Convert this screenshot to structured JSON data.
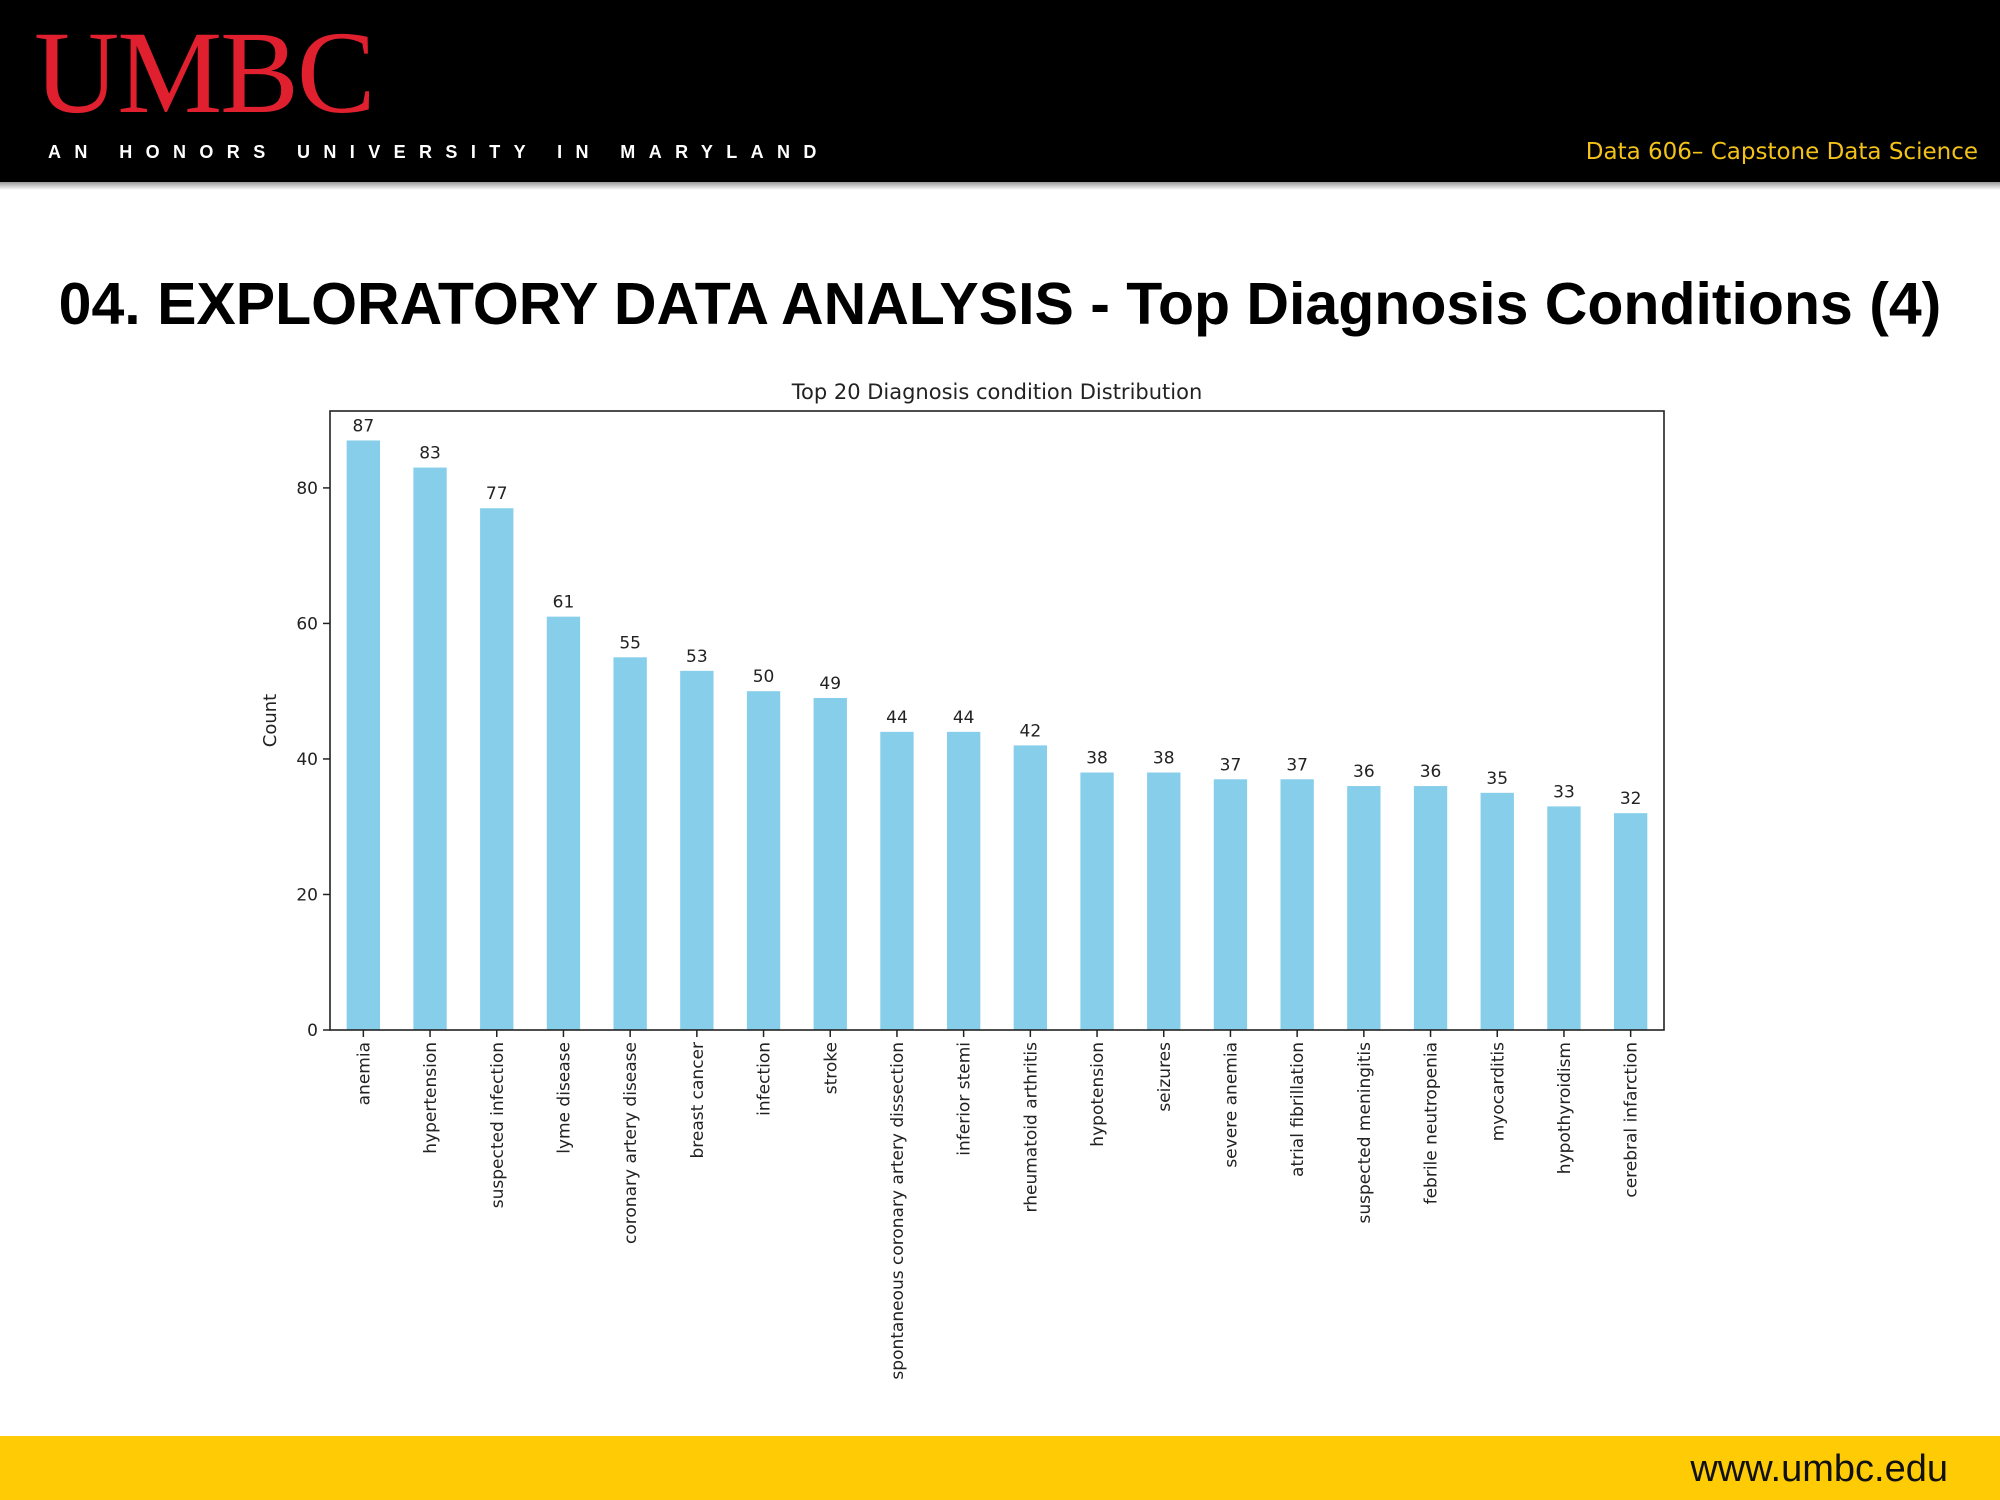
{
  "header": {
    "logo_text": "UMBC",
    "tagline": "AN HONORS UNIVERSITY IN MARYLAND",
    "course": "Data 606– Capstone Data Science",
    "background": "#000000",
    "logo_color": "#e0202e",
    "course_color": "#f3c218"
  },
  "slide": {
    "title": "04. EXPLORATORY DATA ANALYSIS - Top Diagnosis Conditions (4)"
  },
  "footer": {
    "url": "www.umbc.edu",
    "background": "#ffcb05"
  },
  "chart_data": {
    "type": "bar",
    "title": "Top 20 Diagnosis condition Distribution",
    "xlabel": "",
    "ylabel": "Count",
    "ylim": [
      0,
      91.35
    ],
    "yticks": [
      0,
      20,
      40,
      60,
      80
    ],
    "grid": false,
    "bar_color": "#87ceeb",
    "categories": [
      "anemia",
      "hypertension",
      "suspected infection",
      "lyme disease",
      "coronary artery disease",
      "breast cancer",
      "infection",
      "stroke",
      "spontaneous coronary artery dissection",
      "inferior stemi",
      "rheumatoid arthritis",
      "hypotension",
      "seizures",
      "severe anemia",
      "atrial fibrillation",
      "suspected meningitis",
      "febrile neutropenia",
      "myocarditis",
      "hypothyroidism",
      "cerebral infarction"
    ],
    "values": [
      87,
      83,
      77,
      61,
      55,
      53,
      50,
      49,
      44,
      44,
      42,
      38,
      38,
      37,
      37,
      36,
      36,
      35,
      33,
      32
    ]
  }
}
